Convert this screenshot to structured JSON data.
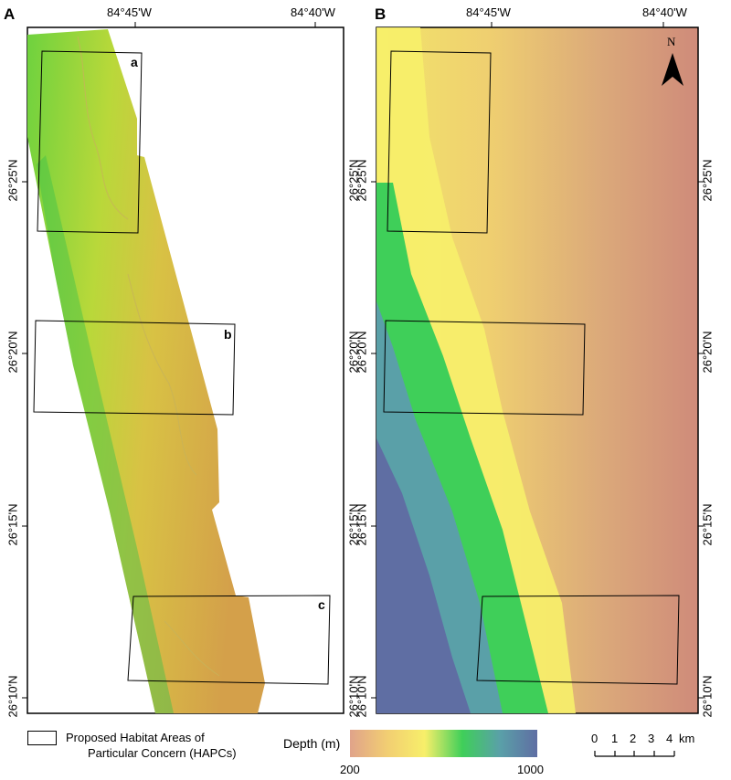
{
  "panels": [
    {
      "letter": "A",
      "top_labels": [
        "84°45'W",
        "84°40'W"
      ],
      "left_labels": [
        "26°25'N",
        "26°20'N",
        "26°15'N",
        "26°10'N"
      ],
      "right_labels": [
        "26°25'N",
        "26°20'N",
        "26°15'N",
        "26°10'N"
      ],
      "box_labels": [
        "a",
        "b",
        "c"
      ]
    },
    {
      "letter": "B",
      "top_labels": [
        "84°45'W",
        "84°40'W"
      ],
      "left_labels": [
        "26°25'N",
        "26°20'N",
        "26°15'N",
        "26°10'N"
      ],
      "right_labels": [
        "26°25'N",
        "26°20'N",
        "26°15'N",
        "26°10'N"
      ],
      "north_label": "N"
    }
  ],
  "legend": {
    "hapc_line1": "Proposed Habitat Areas of",
    "hapc_line2": "Particular Concern (HAPCs)",
    "depth_title": "Depth (m)",
    "depth_min": "200",
    "depth_max": "1000",
    "depth_colors": [
      "#e0a38a",
      "#f2ce72",
      "#f7ef6a",
      "#3fcf59",
      "#5aa0a8",
      "#5f6ea3"
    ]
  },
  "scalebar": {
    "ticks": [
      "0",
      "1",
      "2",
      "3",
      "4"
    ],
    "unit": "km"
  }
}
